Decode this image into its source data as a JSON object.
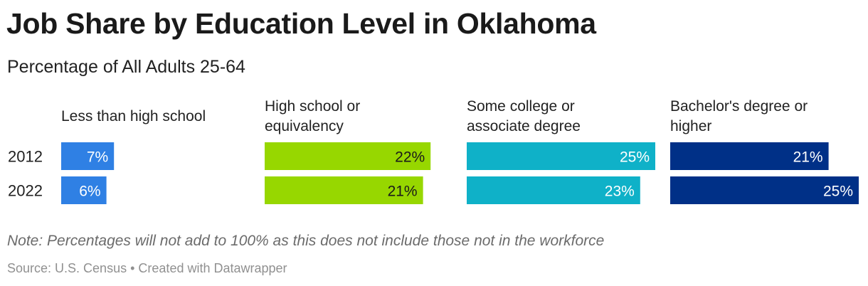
{
  "header": {
    "title": "Job Share by Education Level in Oklahoma",
    "subtitle": "Percentage of All Adults 25-64"
  },
  "footer": {
    "note": "Note: Percentages will not add to 100% as this does not include those not in the workforce",
    "source": "Source: U.S. Census",
    "separator": "•",
    "credit": "Created with Datawrapper"
  },
  "chart_data": {
    "type": "bar",
    "orientation": "horizontal",
    "layout": "small-multiples",
    "rows": [
      "2012",
      "2022"
    ],
    "xlim": [
      0,
      25
    ],
    "value_suffix": "%",
    "series": [
      {
        "name": "Less than high school",
        "label_lines": [
          "Less than high school"
        ],
        "color": "#2f80e4",
        "values": [
          7,
          6
        ]
      },
      {
        "name": "High school or equivalency",
        "label_lines": [
          "High school or",
          "equivalency"
        ],
        "color": "#97d700",
        "values": [
          22,
          21
        ]
      },
      {
        "name": "Some college or associate degree",
        "label_lines": [
          "Some college or",
          "associate degree"
        ],
        "color": "#0fb1c8",
        "values": [
          25,
          23
        ]
      },
      {
        "name": "Bachelor's degree or higher",
        "label_lines": [
          "Bachelor's degree or",
          "higher"
        ],
        "color": "#003087",
        "values": [
          21,
          25
        ]
      }
    ]
  }
}
